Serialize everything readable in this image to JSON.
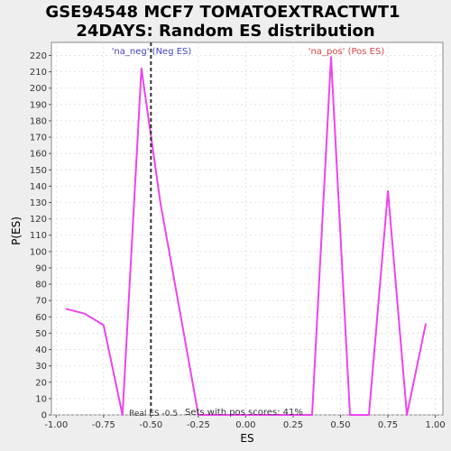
{
  "chart_data": {
    "type": "line",
    "title_line1": "GSE94548 MCF7 TOMATOEXTRACTWT1",
    "title_line2": "24DAYS: Random ES distribution",
    "xlabel": "ES",
    "ylabel": "P(ES)",
    "xlim": [
      -1.025,
      1.04
    ],
    "ylim": [
      0,
      228
    ],
    "xticks": [
      -1.0,
      -0.75,
      -0.5,
      -0.25,
      0.0,
      0.25,
      0.5,
      0.75,
      1.0
    ],
    "xtick_labels": [
      "-1.00",
      "-0.75",
      "-0.50",
      "-0.25",
      "0.00",
      "0.25",
      "0.50",
      "0.75",
      "1.00"
    ],
    "yticks": [
      0,
      10,
      20,
      30,
      40,
      50,
      60,
      70,
      80,
      90,
      100,
      110,
      120,
      130,
      140,
      150,
      160,
      170,
      180,
      190,
      200,
      210,
      220
    ],
    "grid": true,
    "series": [
      {
        "color": "#ee44ee",
        "x": [
          -0.95,
          -0.85,
          -0.75,
          -0.65,
          -0.55,
          -0.45,
          -0.35,
          -0.25,
          -0.15,
          -0.05,
          0.05,
          0.15,
          0.25,
          0.35,
          0.45,
          0.55,
          0.65,
          0.75,
          0.85,
          0.95
        ],
        "y": [
          65,
          62,
          55,
          0,
          212,
          130,
          65,
          0,
          0,
          0,
          0,
          0,
          0,
          0,
          219,
          0,
          0,
          137,
          0,
          56
        ]
      }
    ],
    "real_es": -0.5,
    "real_es_label": "Real ES -0.5",
    "neg_label": "'na_neg' (Neg ES)",
    "pos_label": "'na_pos' (Pos ES)",
    "neg_color": "#4444cc",
    "pos_color": "#dd4444",
    "pos_scores_label": "Sets with pos scores: 41%"
  }
}
